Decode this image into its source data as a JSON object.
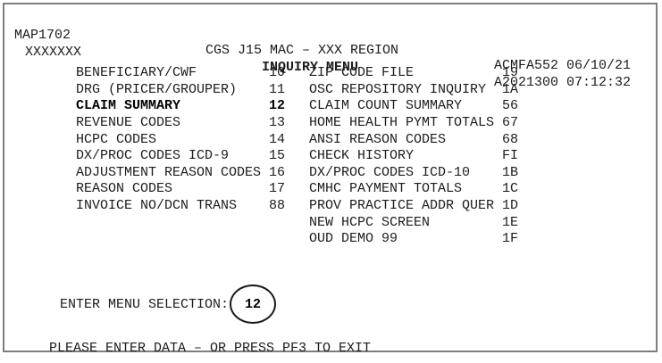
{
  "screen": {
    "map_id": "MAP1702",
    "terminal_id": "XXXXXXX",
    "region_title": "CGS J15 MAC – XXX REGION",
    "screen_title": "INQUIRY MENU",
    "system_id": "ACMFA552",
    "date": "06/10/21",
    "job_id": "A2021300",
    "time": "07:12:32"
  },
  "menu": {
    "rows": [
      {
        "left_label": "BENEFICIARY/CWF",
        "left_code": "10",
        "left_bold": false,
        "right_label": "ZIP CODE FILE",
        "right_code": "19"
      },
      {
        "left_label": "DRG (PRICER/GROUPER)",
        "left_code": "11",
        "left_bold": false,
        "right_label": "OSC REPOSITORY INQUIRY",
        "right_code": "1A"
      },
      {
        "left_label": "CLAIM SUMMARY",
        "left_code": "12",
        "left_bold": true,
        "right_label": "CLAIM COUNT SUMMARY",
        "right_code": "56"
      },
      {
        "left_label": "REVENUE CODES",
        "left_code": "13",
        "left_bold": false,
        "right_label": "HOME HEALTH PYMT TOTALS",
        "right_code": "67"
      },
      {
        "left_label": "HCPC CODES",
        "left_code": "14",
        "left_bold": false,
        "right_label": "ANSI REASON CODES",
        "right_code": "68"
      },
      {
        "left_label": "DX/PROC CODES ICD-9",
        "left_code": "15",
        "left_bold": false,
        "right_label": "CHECK HISTORY",
        "right_code": "FI"
      },
      {
        "left_label": "ADJUSTMENT REASON CODES",
        "left_code": "16",
        "left_bold": false,
        "right_label": "DX/PROC CODES ICD-10",
        "right_code": "1B"
      },
      {
        "left_label": "REASON CODES",
        "left_code": "17",
        "left_bold": false,
        "right_label": "CMHC PAYMENT TOTALS",
        "right_code": "1C"
      },
      {
        "left_label": "INVOICE NO/DCN TRANS",
        "left_code": "88",
        "left_bold": false,
        "right_label": "PROV PRACTICE ADDR QUER",
        "right_code": "1D"
      },
      {
        "left_label": "",
        "left_code": "",
        "left_bold": false,
        "right_label": "NEW HCPC SCREEN",
        "right_code": "1E"
      },
      {
        "left_label": "",
        "left_code": "",
        "left_bold": false,
        "right_label": "OUD DEMO 99",
        "right_code": "1F"
      }
    ]
  },
  "selection": {
    "prompt": "ENTER MENU SELECTION:",
    "value": "12"
  },
  "status": "PLEASE ENTER DATA – OR PRESS PF3 TO EXIT"
}
